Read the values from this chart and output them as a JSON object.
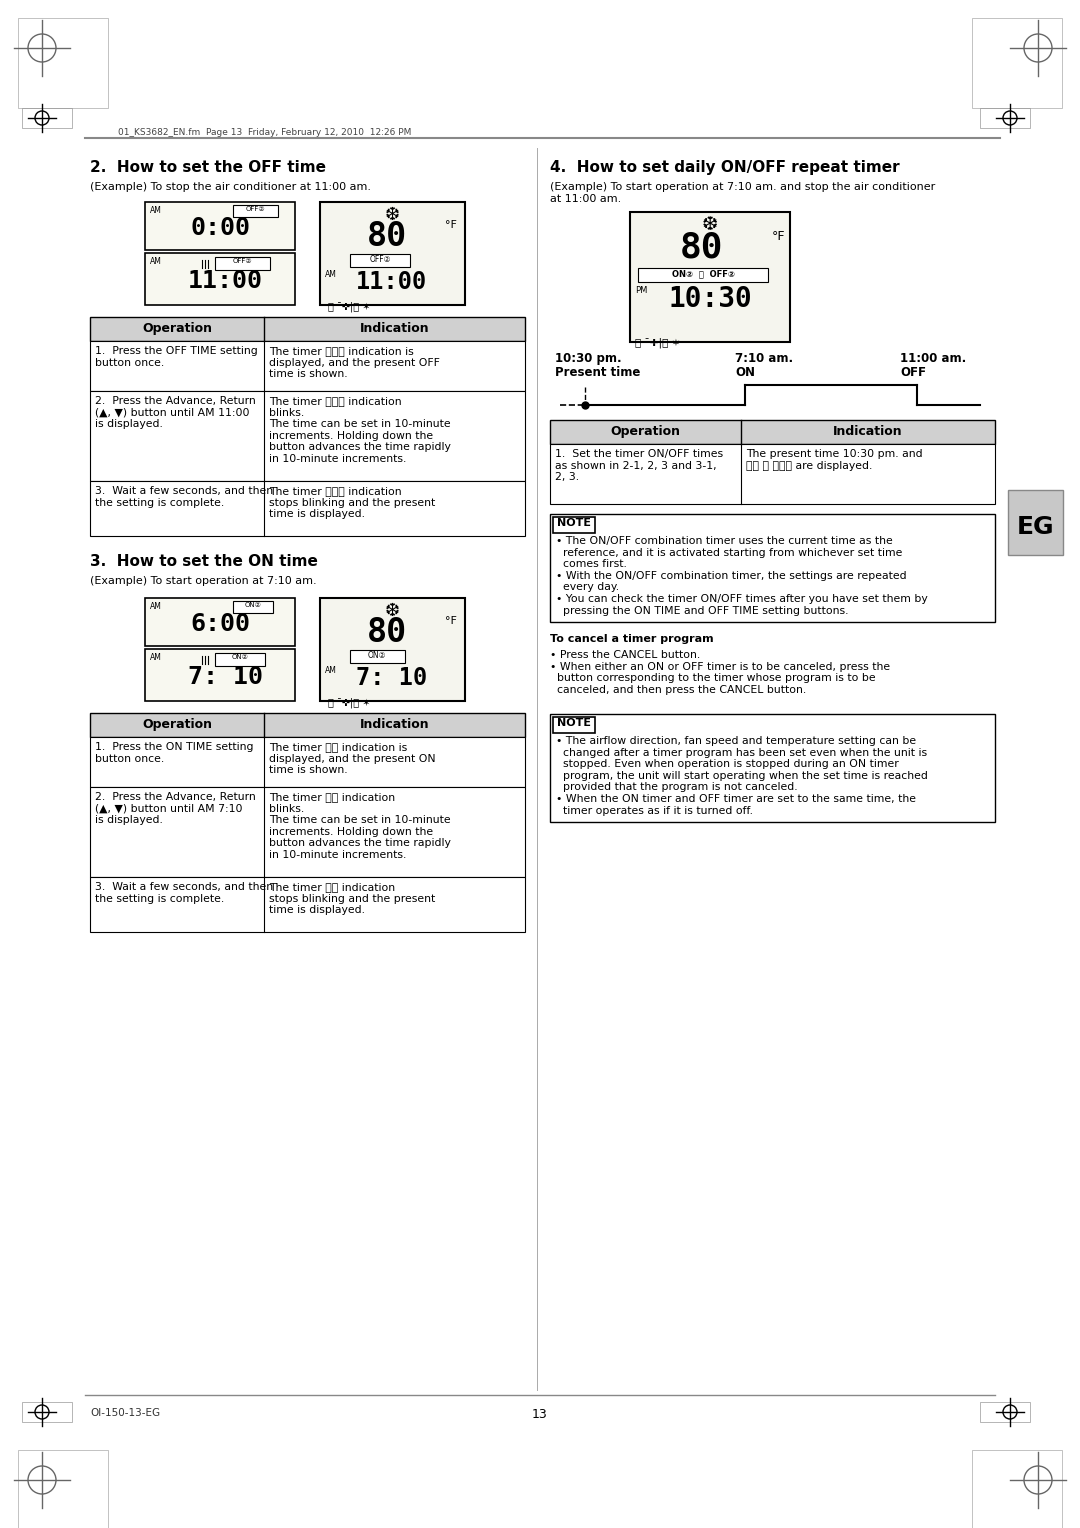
{
  "page_bg": "#ffffff",
  "header_text": "01_KS3682_EN.fm  Page 13  Friday, February 12, 2010  12:26 PM",
  "footer_page": "13",
  "footer_model": "OI-150-13-EG",
  "section2_title": "2.  How to set the OFF time",
  "section2_example": "(Example) To stop the air conditioner at 11:00 am.",
  "section3_title": "3.  How to set the ON time",
  "section3_example": "(Example) To start operation at 7:10 am.",
  "section4_title": "4.  How to set daily ON/OFF repeat timer",
  "section4_example": "(Example) To start operation at 7:10 am. and stop the air conditioner\nat 11:00 am.",
  "eg_label": "EG",
  "table2_rows": [
    [
      "1.  Press the OFF TIME setting\nbutton once.",
      "The timer ⓄⓅⓅ indication is\ndisplayed, and the present OFF\ntime is shown."
    ],
    [
      "2.  Press the Advance, Return\n(▲, ▼) button until AM 11:00\nis displayed.",
      "The timer ⓄⓅⓅ indication\nblinks.\nThe time can be set in 10-minute\nincrements. Holding down the\nbutton advances the time rapidly\nin 10-minute increments."
    ],
    [
      "3.  Wait a few seconds, and then\nthe setting is complete.",
      "The timer ⓄⓅⓅ indication\nstops blinking and the present\ntime is displayed."
    ]
  ],
  "table3_rows": [
    [
      "1.  Press the ON TIME setting\nbutton once.",
      "The timer Ⓞⓝ indication is\ndisplayed, and the present ON\ntime is shown."
    ],
    [
      "2.  Press the Advance, Return\n(▲, ▼) button until AM 7:10\nis displayed.",
      "The timer Ⓞⓝ indication\nblinks.\nThe time can be set in 10-minute\nincrements. Holding down the\nbutton advances the time rapidly\nin 10-minute increments."
    ],
    [
      "3.  Wait a few seconds, and then\nthe setting is complete.",
      "The timer Ⓞⓝ indication\nstops blinking and the present\ntime is displayed."
    ]
  ],
  "table4_rows": [
    [
      "1.  Set the timer ON/OFF times\nas shown in 2-1, 2, 3 and 3-1,\n2, 3.",
      "The present time 10:30 pm. and\nⓄⓝ Ⓢ ⓄⓅⓅ are displayed."
    ]
  ],
  "note4_bullets": [
    "• The ON/OFF combination timer uses the current time as the\n  reference, and it is activated starting from whichever set time\n  comes first.",
    "• With the ON/OFF combination timer, the settings are repeated\n  every day.",
    "• You can check the timer ON/OFF times after you have set them by\n  pressing the ON TIME and OFF TIME setting buttons."
  ],
  "cancel_title": "To cancel a timer program",
  "cancel_bullets": [
    "• Press the CANCEL button.",
    "• When either an ON or OFF timer is to be canceled, press the\n  button corresponding to the timer whose program is to be\n  canceled, and then press the CANCEL button."
  ],
  "note_bottom_bullets": [
    "• The airflow direction, fan speed and temperature setting can be\n  changed after a timer program has been set even when the unit is\n  stopped. Even when operation is stopped during an ON timer\n  program, the unit will start operating when the set time is reached\n  provided that the program is not canceled.",
    "• When the ON timer and OFF timer are set to the same time, the\n  timer operates as if it is turned off."
  ],
  "timeline_labels_left": "10:30 pm.",
  "timeline_labels_left2": "Present time",
  "timeline_labels_mid": "7:10 am.",
  "timeline_labels_mid2": "ON",
  "timeline_labels_right": "11:00 am.",
  "timeline_labels_right2": "OFF"
}
